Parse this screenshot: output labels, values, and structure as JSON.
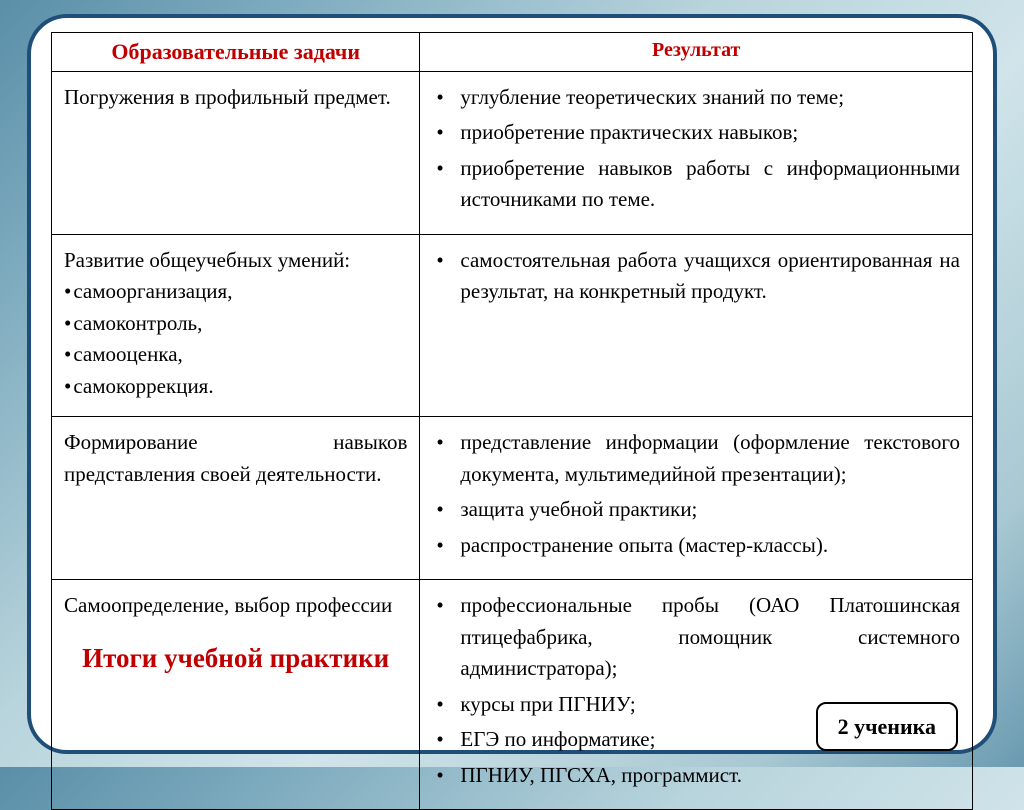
{
  "colors": {
    "frame_border": "#1f4e79",
    "header_text": "#c00000",
    "body_text": "#000000",
    "cell_border": "#000000",
    "page_bg": "#ffffff"
  },
  "typography": {
    "family": "Times New Roman",
    "header_left_pt": 22,
    "header_right_pt": 20,
    "body_pt": 21,
    "footer_title_pt": 27,
    "badge_pt": 22
  },
  "table": {
    "columns": [
      "Образовательные задачи",
      "Результат"
    ],
    "column_widths_pct": [
      40,
      60
    ],
    "rows": [
      {
        "task_text": "Погружения в профильный предмет.",
        "task_sublist": [],
        "results": [
          "углубление теоретических знаний по теме;",
          "приобретение практических навыков;",
          "приобретение навыков работы с информационными источниками по теме."
        ]
      },
      {
        "task_text": "Развитие общеучебных умений:",
        "task_sublist": [
          "самоорганизация,",
          "самоконтроль,",
          "самооценка,",
          "самокоррекция."
        ],
        "results": [
          "самостоятельная работа учащихся ориентированная на результат, на конкретный продукт."
        ]
      },
      {
        "task_text": "Формирование навыков представления своей деятельности.",
        "task_sublist": [],
        "results": [
          "представление информации (оформление текстового документа, мультимедийной презентации);",
          "защита учебной практики;",
          "распространение опыта (мастер-классы)."
        ]
      },
      {
        "task_text": "Самоопределение, выбор профессии",
        "task_sublist": [],
        "results": [
          "профессиональные пробы (ОАО Платошинская птицефабрика, помощник системного администратора);",
          "курсы при ПГНИУ;",
          "ЕГЭ по информатике;",
          "ПГНИУ, ПГСХА, программист."
        ]
      }
    ]
  },
  "footer_title": "Итоги учебной практики",
  "badge_text": "2 ученика"
}
